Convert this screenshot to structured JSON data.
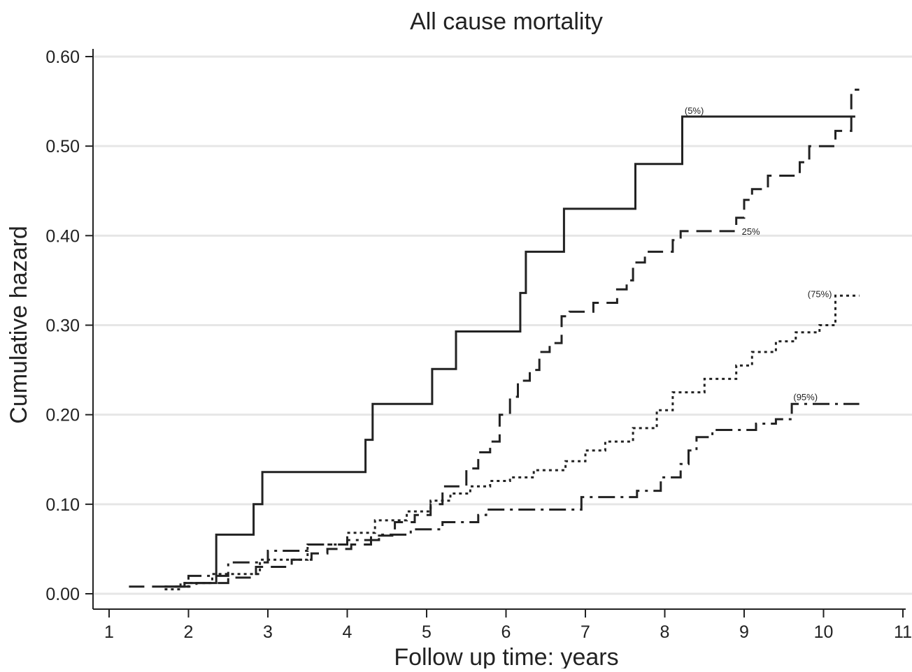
{
  "chart_data": {
    "type": "line",
    "subtype": "step",
    "title": "All cause mortality",
    "xlabel": "Follow up time: years",
    "ylabel": "Cumulative hazard",
    "xlim": [
      1,
      11
    ],
    "ylim": [
      0,
      0.6
    ],
    "xticks": [
      1,
      2,
      3,
      4,
      5,
      6,
      7,
      8,
      9,
      10,
      11
    ],
    "yticks": [
      0.0,
      0.1,
      0.2,
      0.3,
      0.4,
      0.5,
      0.6
    ],
    "ytick_labels": [
      "0.00",
      "0.10",
      "0.20",
      "0.30",
      "0.40",
      "0.50",
      "0.60"
    ],
    "grid": "horizontal",
    "legend": "none",
    "colors": {
      "line": "#222222",
      "grid": "#e6e6e6",
      "axis": "#222222"
    },
    "series": [
      {
        "name": "(5%)",
        "style": "solid",
        "label_anchor": [
          8.25,
          0.54
        ],
        "x": [
          1.7,
          1.95,
          2.35,
          2.82,
          2.93,
          4.23,
          4.32,
          5.07,
          5.37,
          6.18,
          6.25,
          6.73,
          7.63,
          8.22,
          10.4
        ],
        "y": [
          0.008,
          0.012,
          0.066,
          0.1,
          0.136,
          0.172,
          0.212,
          0.251,
          0.293,
          0.336,
          0.382,
          0.43,
          0.48,
          0.533,
          0.533
        ]
      },
      {
        "name": "25%",
        "style": "dashed",
        "label_anchor": [
          8.97,
          0.405
        ],
        "x": [
          1.25,
          1.6,
          2.1,
          2.5,
          2.85,
          3.3,
          3.55,
          3.75,
          4.05,
          4.3,
          4.6,
          4.85,
          5.05,
          5.2,
          5.5,
          5.65,
          5.8,
          5.92,
          6.05,
          6.15,
          6.3,
          6.42,
          6.55,
          6.7,
          6.8,
          7.1,
          7.4,
          7.52,
          7.6,
          7.75,
          8.1,
          8.2,
          8.9,
          9.0,
          9.1,
          9.3,
          9.7,
          9.82,
          9.95,
          10.15,
          10.35,
          10.45
        ],
        "y": [
          0.008,
          0.008,
          0.012,
          0.018,
          0.03,
          0.038,
          0.045,
          0.05,
          0.055,
          0.065,
          0.08,
          0.088,
          0.1,
          0.12,
          0.14,
          0.158,
          0.17,
          0.2,
          0.22,
          0.238,
          0.25,
          0.27,
          0.28,
          0.31,
          0.315,
          0.325,
          0.34,
          0.35,
          0.37,
          0.382,
          0.395,
          0.405,
          0.42,
          0.44,
          0.452,
          0.467,
          0.482,
          0.5,
          0.5,
          0.517,
          0.563,
          0.563
        ]
      },
      {
        "name": "(75%)",
        "style": "dotted",
        "label_anchor": [
          9.8,
          0.335
        ],
        "x": [
          1.7,
          1.9,
          2.3,
          2.9,
          3.5,
          4.0,
          4.35,
          4.75,
          5.05,
          5.3,
          5.55,
          5.8,
          6.05,
          6.35,
          6.75,
          7.0,
          7.25,
          7.6,
          7.9,
          8.1,
          8.5,
          8.9,
          9.1,
          9.4,
          9.65,
          9.95,
          10.15,
          10.45
        ],
        "y": [
          0.005,
          0.012,
          0.022,
          0.038,
          0.055,
          0.068,
          0.082,
          0.092,
          0.104,
          0.112,
          0.12,
          0.126,
          0.13,
          0.138,
          0.148,
          0.16,
          0.17,
          0.185,
          0.205,
          0.225,
          0.24,
          0.255,
          0.27,
          0.282,
          0.292,
          0.3,
          0.333,
          0.333
        ]
      },
      {
        "name": "(95%)",
        "style": "dash-dot",
        "label_anchor": [
          9.62,
          0.22
        ],
        "x": [
          1.7,
          2.0,
          2.5,
          3.0,
          3.5,
          4.0,
          4.4,
          4.8,
          5.2,
          5.65,
          5.75,
          6.1,
          6.95,
          7.35,
          7.65,
          7.95,
          8.2,
          8.3,
          8.4,
          8.6,
          9.15,
          9.4,
          9.6,
          10.45
        ],
        "y": [
          0.008,
          0.02,
          0.035,
          0.048,
          0.055,
          0.06,
          0.066,
          0.072,
          0.08,
          0.088,
          0.094,
          0.094,
          0.108,
          0.108,
          0.115,
          0.13,
          0.145,
          0.16,
          0.175,
          0.183,
          0.19,
          0.195,
          0.212,
          0.212
        ]
      }
    ]
  }
}
